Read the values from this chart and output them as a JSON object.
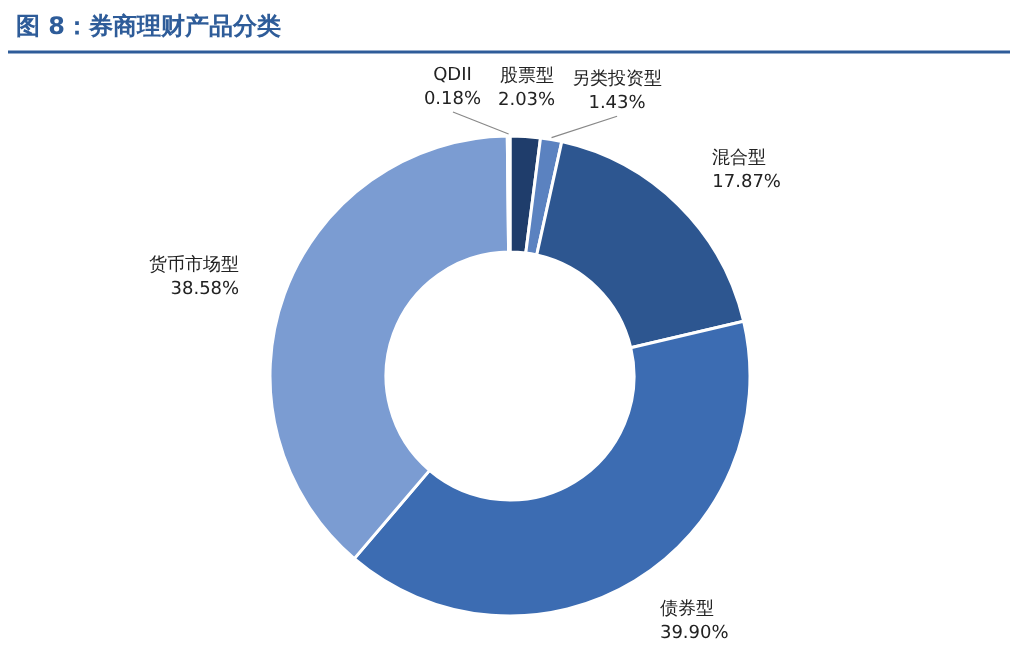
{
  "chart_data": {
    "type": "donut",
    "title": "图 8：券商理财产品分类",
    "categories": [
      "股票型",
      "另类投资型",
      "混合型",
      "债券型",
      "货币市场型",
      "QDII"
    ],
    "values": [
      2.03,
      1.43,
      17.87,
      39.9,
      38.58,
      0.18
    ],
    "value_labels": [
      "2.03%",
      "1.43%",
      "17.87%",
      "39.90%",
      "38.58%",
      "0.18%"
    ],
    "colors": [
      "#1f3d6b",
      "#5b82c0",
      "#2d5690",
      "#3c6cb2",
      "#7b9cd2",
      "#c8d6ec"
    ],
    "legend": false
  }
}
